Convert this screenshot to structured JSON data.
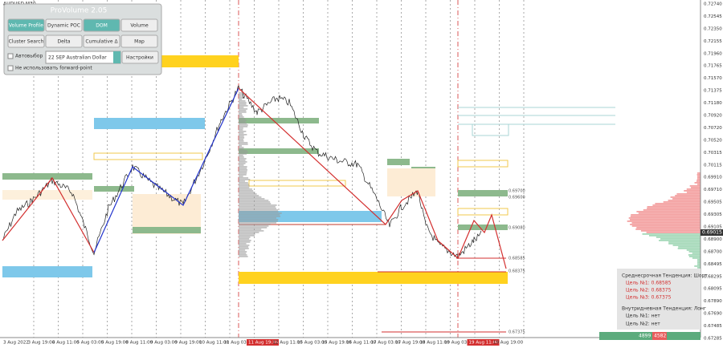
{
  "symbol": "AUDUSD,M30",
  "panel": {
    "title": "ProVolume 2.05",
    "buttons": [
      "Volume Profile",
      "Dynamic POC",
      "DOM",
      "Volume",
      "Cluster Search",
      "Delta",
      "Cumulative Δ",
      "Map"
    ],
    "auto_select": "Автовыбор",
    "contract": "22 SEP Australian Dollar",
    "settings": "Настройки",
    "forward_point": "Не использовать forward-point"
  },
  "price_axis": [
    "0.72740",
    "0.72545",
    "0.72350",
    "0.72155",
    "0.71960",
    "0.71765",
    "0.71570",
    "0.71375",
    "0.71180",
    "0.70920",
    "0.70720",
    "0.70520",
    "0.70315",
    "0.70115",
    "0.69910",
    "0.69710",
    "0.69505",
    "0.69305",
    "0.69105",
    "0.68900",
    "0.68700",
    "0.68495",
    "0.68295",
    "0.68095",
    "0.67890",
    "0.67690",
    "0.67485",
    "0.67285"
  ],
  "current_price": "0.69015",
  "time_axis": [
    "3 Aug 2022",
    "3 Aug 19:00",
    "4 Aug 11:00",
    "5 Aug 03:00",
    "5 Aug 19:00",
    "8 Aug 11:00",
    "9 Aug 03:00",
    "9 Aug 19:00",
    "10 Aug 11:00",
    "11 Aug 03:00",
    "11 Aug 19:30",
    "12 Aug 11:00",
    "15 Aug 03:00",
    "15 Aug 19:00",
    "16 Aug 11:00",
    "17 Aug 03:00",
    "17 Aug 19:00",
    "18 Aug 11:00",
    "19 Aug 03:00",
    "19 Aug 11:00",
    "19 Aug 19:00"
  ],
  "level_labels": [
    "0.69700",
    "0.69600",
    "0.69080",
    "0.68585",
    "0.68375",
    "0.67375"
  ],
  "info": {
    "mid_trend": "Среднесрочная Тенденция: Шорт",
    "mid_targets": [
      "Цель №1: 0.68585",
      "Цель №2: 0.68375",
      "Цель №3: 0.67375"
    ],
    "intraday_trend": "Внутридневная Тенденция: Лонг",
    "intraday_targets": [
      "Цель №1: нет",
      "Цель №2: нет"
    ]
  },
  "volume_totals": [
    "4899",
    "4582"
  ]
}
